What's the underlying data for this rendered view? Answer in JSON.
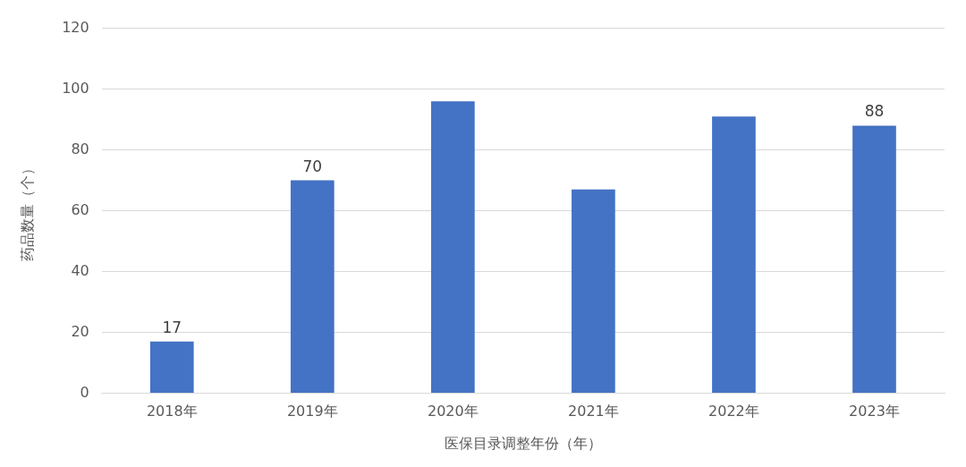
{
  "chart_data": {
    "type": "bar",
    "xlabel": "医保目录调整年份（年）",
    "ylabel": "药品数量（个）",
    "categories": [
      "2018年",
      "2019年",
      "2020年",
      "2021年",
      "2022年",
      "2023年"
    ],
    "values": [
      17,
      70,
      96,
      67,
      91,
      88
    ],
    "value_labels": [
      "17",
      "70",
      null,
      null,
      null,
      "88"
    ],
    "color": "#4472c4",
    "ylim": [
      0,
      120
    ],
    "yticks": [
      0,
      20,
      40,
      60,
      80,
      100,
      120
    ],
    "grid": "y"
  }
}
